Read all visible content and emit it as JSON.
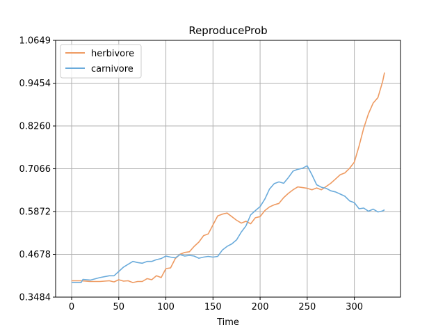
{
  "chart_data": {
    "type": "line",
    "title": "ReproduceProb",
    "xlabel": "Time",
    "ylabel": "",
    "xlim": [
      -17,
      349
    ],
    "ylim": [
      0.3484,
      1.0649
    ],
    "xticks": [
      0,
      50,
      100,
      150,
      200,
      250,
      300
    ],
    "yticks": [
      "0.3484",
      "0.4678",
      "0.5872",
      "0.7066",
      "0.8260",
      "0.9454",
      "1.0649"
    ],
    "grid": true,
    "legend_position": "top-left",
    "series": [
      {
        "name": "herbivore",
        "color": "#ee9a61",
        "points": [
          [
            0,
            0.394
          ],
          [
            10,
            0.394
          ],
          [
            20,
            0.392
          ],
          [
            30,
            0.392
          ],
          [
            40,
            0.394
          ],
          [
            45,
            0.391
          ],
          [
            50,
            0.397
          ],
          [
            55,
            0.393
          ],
          [
            60,
            0.394
          ],
          [
            65,
            0.389
          ],
          [
            70,
            0.392
          ],
          [
            75,
            0.392
          ],
          [
            80,
            0.4
          ],
          [
            85,
            0.397
          ],
          [
            90,
            0.408
          ],
          [
            95,
            0.403
          ],
          [
            100,
            0.428
          ],
          [
            105,
            0.43
          ],
          [
            110,
            0.456
          ],
          [
            115,
            0.468
          ],
          [
            120,
            0.473
          ],
          [
            125,
            0.475
          ],
          [
            130,
            0.49
          ],
          [
            135,
            0.502
          ],
          [
            140,
            0.52
          ],
          [
            145,
            0.525
          ],
          [
            150,
            0.55
          ],
          [
            155,
            0.575
          ],
          [
            160,
            0.58
          ],
          [
            165,
            0.583
          ],
          [
            170,
            0.573
          ],
          [
            175,
            0.563
          ],
          [
            180,
            0.555
          ],
          [
            185,
            0.56
          ],
          [
            190,
            0.553
          ],
          [
            195,
            0.57
          ],
          [
            200,
            0.573
          ],
          [
            205,
            0.59
          ],
          [
            210,
            0.6
          ],
          [
            215,
            0.606
          ],
          [
            220,
            0.61
          ],
          [
            225,
            0.626
          ],
          [
            230,
            0.638
          ],
          [
            235,
            0.648
          ],
          [
            240,
            0.656
          ],
          [
            245,
            0.654
          ],
          [
            250,
            0.652
          ],
          [
            255,
            0.648
          ],
          [
            260,
            0.653
          ],
          [
            265,
            0.648
          ],
          [
            270,
            0.657
          ],
          [
            275,
            0.666
          ],
          [
            280,
            0.678
          ],
          [
            285,
            0.69
          ],
          [
            290,
            0.695
          ],
          [
            295,
            0.708
          ],
          [
            300,
            0.725
          ],
          [
            305,
            0.77
          ],
          [
            310,
            0.82
          ],
          [
            315,
            0.86
          ],
          [
            320,
            0.89
          ],
          [
            325,
            0.905
          ],
          [
            330,
            0.95
          ],
          [
            332,
            0.975
          ]
        ]
      },
      {
        "name": "carnivore",
        "color": "#6aabdb",
        "points": [
          [
            0,
            0.389
          ],
          [
            10,
            0.389
          ],
          [
            12,
            0.398
          ],
          [
            20,
            0.396
          ],
          [
            30,
            0.403
          ],
          [
            40,
            0.408
          ],
          [
            45,
            0.408
          ],
          [
            50,
            0.42
          ],
          [
            55,
            0.432
          ],
          [
            60,
            0.44
          ],
          [
            65,
            0.448
          ],
          [
            70,
            0.445
          ],
          [
            75,
            0.443
          ],
          [
            80,
            0.448
          ],
          [
            85,
            0.448
          ],
          [
            90,
            0.453
          ],
          [
            95,
            0.456
          ],
          [
            100,
            0.463
          ],
          [
            105,
            0.46
          ],
          [
            110,
            0.458
          ],
          [
            115,
            0.467
          ],
          [
            120,
            0.463
          ],
          [
            125,
            0.465
          ],
          [
            130,
            0.463
          ],
          [
            135,
            0.457
          ],
          [
            140,
            0.46
          ],
          [
            145,
            0.462
          ],
          [
            150,
            0.46
          ],
          [
            155,
            0.462
          ],
          [
            160,
            0.48
          ],
          [
            165,
            0.49
          ],
          [
            170,
            0.497
          ],
          [
            175,
            0.508
          ],
          [
            180,
            0.53
          ],
          [
            185,
            0.547
          ],
          [
            190,
            0.578
          ],
          [
            195,
            0.59
          ],
          [
            200,
            0.601
          ],
          [
            205,
            0.622
          ],
          [
            210,
            0.65
          ],
          [
            215,
            0.665
          ],
          [
            220,
            0.67
          ],
          [
            225,
            0.666
          ],
          [
            230,
            0.682
          ],
          [
            235,
            0.7
          ],
          [
            240,
            0.705
          ],
          [
            245,
            0.708
          ],
          [
            250,
            0.715
          ],
          [
            255,
            0.69
          ],
          [
            260,
            0.662
          ],
          [
            265,
            0.655
          ],
          [
            270,
            0.652
          ],
          [
            275,
            0.645
          ],
          [
            280,
            0.642
          ],
          [
            285,
            0.636
          ],
          [
            290,
            0.63
          ],
          [
            295,
            0.617
          ],
          [
            300,
            0.612
          ],
          [
            305,
            0.595
          ],
          [
            310,
            0.597
          ],
          [
            315,
            0.588
          ],
          [
            320,
            0.594
          ],
          [
            325,
            0.586
          ],
          [
            330,
            0.589
          ],
          [
            332,
            0.592
          ]
        ]
      }
    ]
  }
}
